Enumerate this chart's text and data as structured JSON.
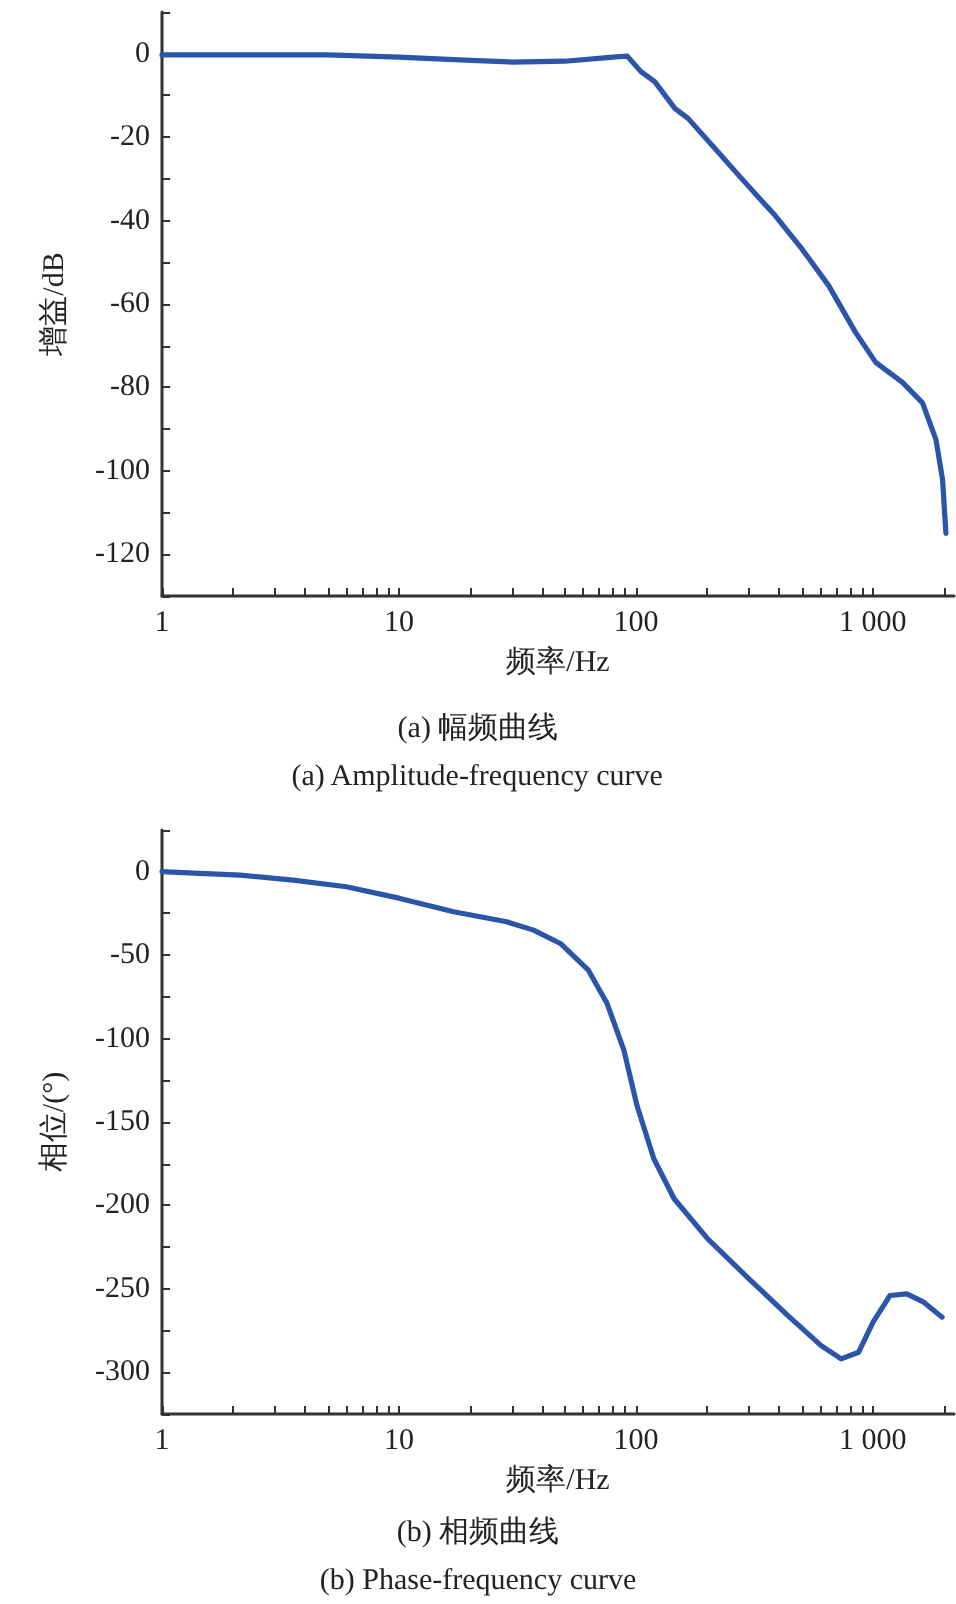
{
  "chart_data": [
    {
      "type": "line",
      "xlabel": "频率/Hz",
      "ylabel": "增益/dB",
      "annotations": [
        "(a) 幅频曲线",
        "(a) Amplitude-frequency curve"
      ],
      "log": "x",
      "grid": false,
      "marker": "none",
      "line_style": "solid",
      "color": "#2b55a8",
      "x": [
        1,
        5,
        10,
        20,
        30,
        50,
        80,
        92,
        105,
        120,
        146,
        166,
        216,
        280,
        387,
        502,
        651,
        845,
        1028,
        1333,
        1620,
        1846,
        1968,
        2034
      ],
      "values": [
        -0.3,
        -0.3,
        -0.8,
        -1.6,
        -2,
        -1.8,
        -0.8,
        -0.6,
        -4.3,
        -6.7,
        -13.1,
        -15.5,
        -22.8,
        -30,
        -38.8,
        -46.8,
        -55.6,
        -66.8,
        -74,
        -78.8,
        -83.7,
        -92.5,
        -102,
        -115
      ],
      "xlim": [
        1,
        2200
      ],
      "xticks": [
        1,
        {
          "value": 2,
          "label": null
        },
        {
          "value": 3,
          "label": null
        },
        {
          "value": 4,
          "label": null
        },
        {
          "value": 5,
          "label": null
        },
        {
          "value": 6,
          "label": null
        },
        {
          "value": 7,
          "label": null
        },
        {
          "value": 8,
          "label": null
        },
        {
          "value": 9,
          "label": null
        },
        10,
        {
          "value": 20,
          "label": null
        },
        {
          "value": 30,
          "label": null
        },
        {
          "value": 40,
          "label": null
        },
        {
          "value": 50,
          "label": null
        },
        {
          "value": 60,
          "label": null
        },
        {
          "value": 70,
          "label": null
        },
        {
          "value": 80,
          "label": null
        },
        {
          "value": 90,
          "label": null
        },
        100,
        {
          "value": 200,
          "label": null
        },
        {
          "value": 300,
          "label": null
        },
        {
          "value": 400,
          "label": null
        },
        {
          "value": 500,
          "label": null
        },
        {
          "value": 600,
          "label": null
        },
        {
          "value": 700,
          "label": null
        },
        {
          "value": 800,
          "label": null
        },
        {
          "value": 900,
          "label": null
        },
        {
          "value": 1000,
          "label": "1 000"
        },
        {
          "value": 2000,
          "label": null
        }
      ],
      "ylim": [
        -130,
        10
      ],
      "yticks": [
        {
          "value": -130,
          "label": null
        },
        -120,
        {
          "value": -110,
          "label": null
        },
        -100,
        {
          "value": -90,
          "label": null
        },
        -80,
        {
          "value": -70,
          "label": null
        },
        -60,
        {
          "value": -50,
          "label": null
        },
        -40,
        {
          "value": -30,
          "label": null
        },
        -20,
        {
          "value": -10,
          "label": null
        },
        0,
        {
          "value": 10,
          "label": null
        }
      ]
    },
    {
      "type": "line",
      "xlabel": "频率/Hz",
      "ylabel": "相位/(°)",
      "annotations": [
        "(b) 相频曲线",
        "(b) Phase-frequency curve"
      ],
      "log": "x",
      "grid": false,
      "marker": "none",
      "line_style": "solid",
      "color": "#2b55a8",
      "x": [
        1,
        1.44,
        2.13,
        3.57,
        6,
        10.1,
        17,
        28.5,
        37,
        48,
        63,
        75.6,
        89,
        101,
        119,
        145,
        201,
        300,
        438,
        605,
        735,
        870,
        1002,
        1180,
        1390,
        1640,
        1960
      ],
      "values": [
        0,
        -1,
        -2,
        -5,
        -9,
        -16,
        -24,
        -30,
        -35,
        -43,
        -59,
        -79,
        -107,
        -140,
        -172,
        -196,
        -220,
        -244,
        -266,
        -284,
        -292,
        -288,
        -270,
        -254,
        -253,
        -258,
        -267
      ],
      "xlim": [
        1,
        2200
      ],
      "xticks": [
        1,
        {
          "value": 2,
          "label": null
        },
        {
          "value": 3,
          "label": null
        },
        {
          "value": 4,
          "label": null
        },
        {
          "value": 5,
          "label": null
        },
        {
          "value": 6,
          "label": null
        },
        {
          "value": 7,
          "label": null
        },
        {
          "value": 8,
          "label": null
        },
        {
          "value": 9,
          "label": null
        },
        10,
        {
          "value": 20,
          "label": null
        },
        {
          "value": 30,
          "label": null
        },
        {
          "value": 40,
          "label": null
        },
        {
          "value": 50,
          "label": null
        },
        {
          "value": 60,
          "label": null
        },
        {
          "value": 70,
          "label": null
        },
        {
          "value": 80,
          "label": null
        },
        {
          "value": 90,
          "label": null
        },
        100,
        {
          "value": 200,
          "label": null
        },
        {
          "value": 300,
          "label": null
        },
        {
          "value": 400,
          "label": null
        },
        {
          "value": 500,
          "label": null
        },
        {
          "value": 600,
          "label": null
        },
        {
          "value": 700,
          "label": null
        },
        {
          "value": 800,
          "label": null
        },
        {
          "value": 900,
          "label": null
        },
        {
          "value": 1000,
          "label": "1 000"
        },
        {
          "value": 2000,
          "label": null
        }
      ],
      "ylim": [
        -325,
        25
      ],
      "yticks": [
        {
          "value": -325,
          "label": null
        },
        -300,
        {
          "value": -275,
          "label": null
        },
        -250,
        {
          "value": -225,
          "label": null
        },
        -200,
        {
          "value": -175,
          "label": null
        },
        -150,
        {
          "value": -125,
          "label": null
        },
        -100,
        {
          "value": -75,
          "label": null
        },
        -50,
        {
          "value": -25,
          "label": null
        },
        0,
        {
          "value": 25,
          "label": null
        }
      ]
    }
  ]
}
